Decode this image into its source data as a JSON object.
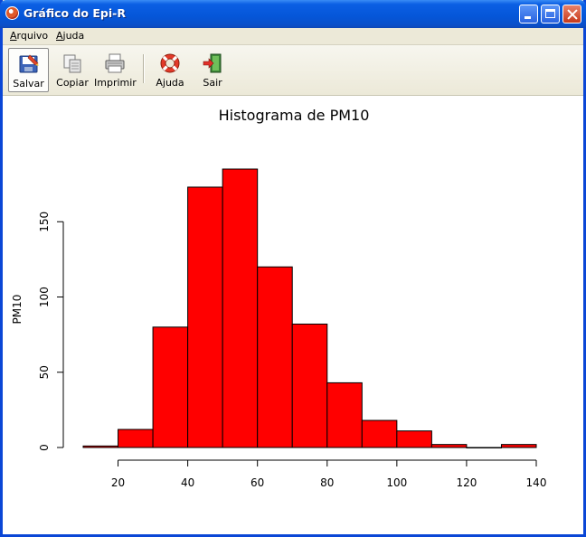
{
  "window": {
    "title": "Gráfico do Epi-R"
  },
  "menu": {
    "arquivo": {
      "accel": "A",
      "rest": "rquivo"
    },
    "ajuda": {
      "accel": "A",
      "rest": "juda"
    }
  },
  "toolbar": {
    "salvar": "Salvar",
    "copiar": "Copiar",
    "imprimir": "Imprimir",
    "ajuda": "Ajuda",
    "sair": "Sair"
  },
  "colors": {
    "bar_fill": "#ff0000",
    "bar_stroke": "#000000"
  },
  "chart_data": {
    "type": "bar",
    "title": "Histograma de PM10",
    "xlabel": "",
    "ylabel": "PM10",
    "bins": [
      {
        "x0": 10,
        "x1": 20,
        "count": 1
      },
      {
        "x0": 20,
        "x1": 30,
        "count": 12
      },
      {
        "x0": 30,
        "x1": 40,
        "count": 80
      },
      {
        "x0": 40,
        "x1": 50,
        "count": 173
      },
      {
        "x0": 50,
        "x1": 60,
        "count": 185
      },
      {
        "x0": 60,
        "x1": 70,
        "count": 120
      },
      {
        "x0": 70,
        "x1": 80,
        "count": 82
      },
      {
        "x0": 80,
        "x1": 90,
        "count": 43
      },
      {
        "x0": 90,
        "x1": 100,
        "count": 18
      },
      {
        "x0": 100,
        "x1": 110,
        "count": 11
      },
      {
        "x0": 110,
        "x1": 120,
        "count": 2
      },
      {
        "x0": 120,
        "x1": 130,
        "count": 0
      },
      {
        "x0": 130,
        "x1": 140,
        "count": 2
      }
    ],
    "x_ticks": [
      20,
      40,
      60,
      80,
      100,
      120,
      140
    ],
    "y_ticks": [
      0,
      50,
      100,
      150
    ],
    "xlim": [
      10,
      140
    ],
    "ylim": [
      0,
      185
    ],
    "grid": false,
    "legend": "none"
  }
}
